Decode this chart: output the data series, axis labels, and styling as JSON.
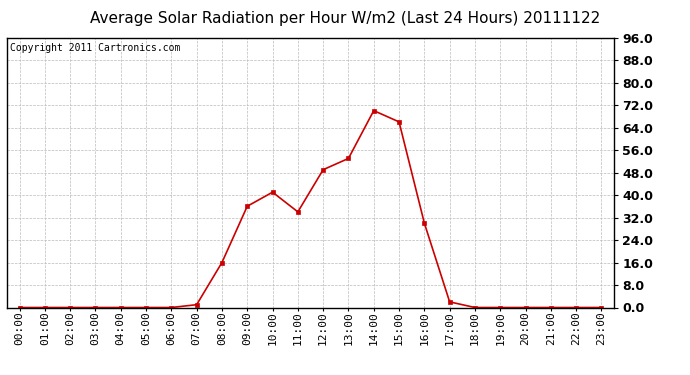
{
  "title": "Average Solar Radiation per Hour W/m2 (Last 24 Hours) 20111122",
  "copyright": "Copyright 2011 Cartronics.com",
  "hours": [
    "00:00",
    "01:00",
    "02:00",
    "03:00",
    "04:00",
    "05:00",
    "06:00",
    "07:00",
    "08:00",
    "09:00",
    "10:00",
    "11:00",
    "12:00",
    "13:00",
    "14:00",
    "15:00",
    "16:00",
    "17:00",
    "18:00",
    "19:00",
    "20:00",
    "21:00",
    "22:00",
    "23:00"
  ],
  "values": [
    0.0,
    0.0,
    0.0,
    0.0,
    0.0,
    0.0,
    0.0,
    1.0,
    16.0,
    36.0,
    41.0,
    34.0,
    49.0,
    53.0,
    70.0,
    66.0,
    30.0,
    2.0,
    0.0,
    0.0,
    0.0,
    0.0,
    0.0,
    0.0
  ],
  "line_color": "#cc0000",
  "marker": "s",
  "marker_size": 3,
  "bg_color": "#ffffff",
  "plot_bg_color": "#ffffff",
  "grid_color": "#bbbbbb",
  "title_fontsize": 11,
  "copyright_fontsize": 7,
  "tick_fontsize": 8,
  "ytick_fontsize": 9,
  "ylim": [
    0.0,
    96.0
  ],
  "yticks": [
    0.0,
    8.0,
    16.0,
    24.0,
    32.0,
    40.0,
    48.0,
    56.0,
    64.0,
    72.0,
    80.0,
    88.0,
    96.0
  ]
}
